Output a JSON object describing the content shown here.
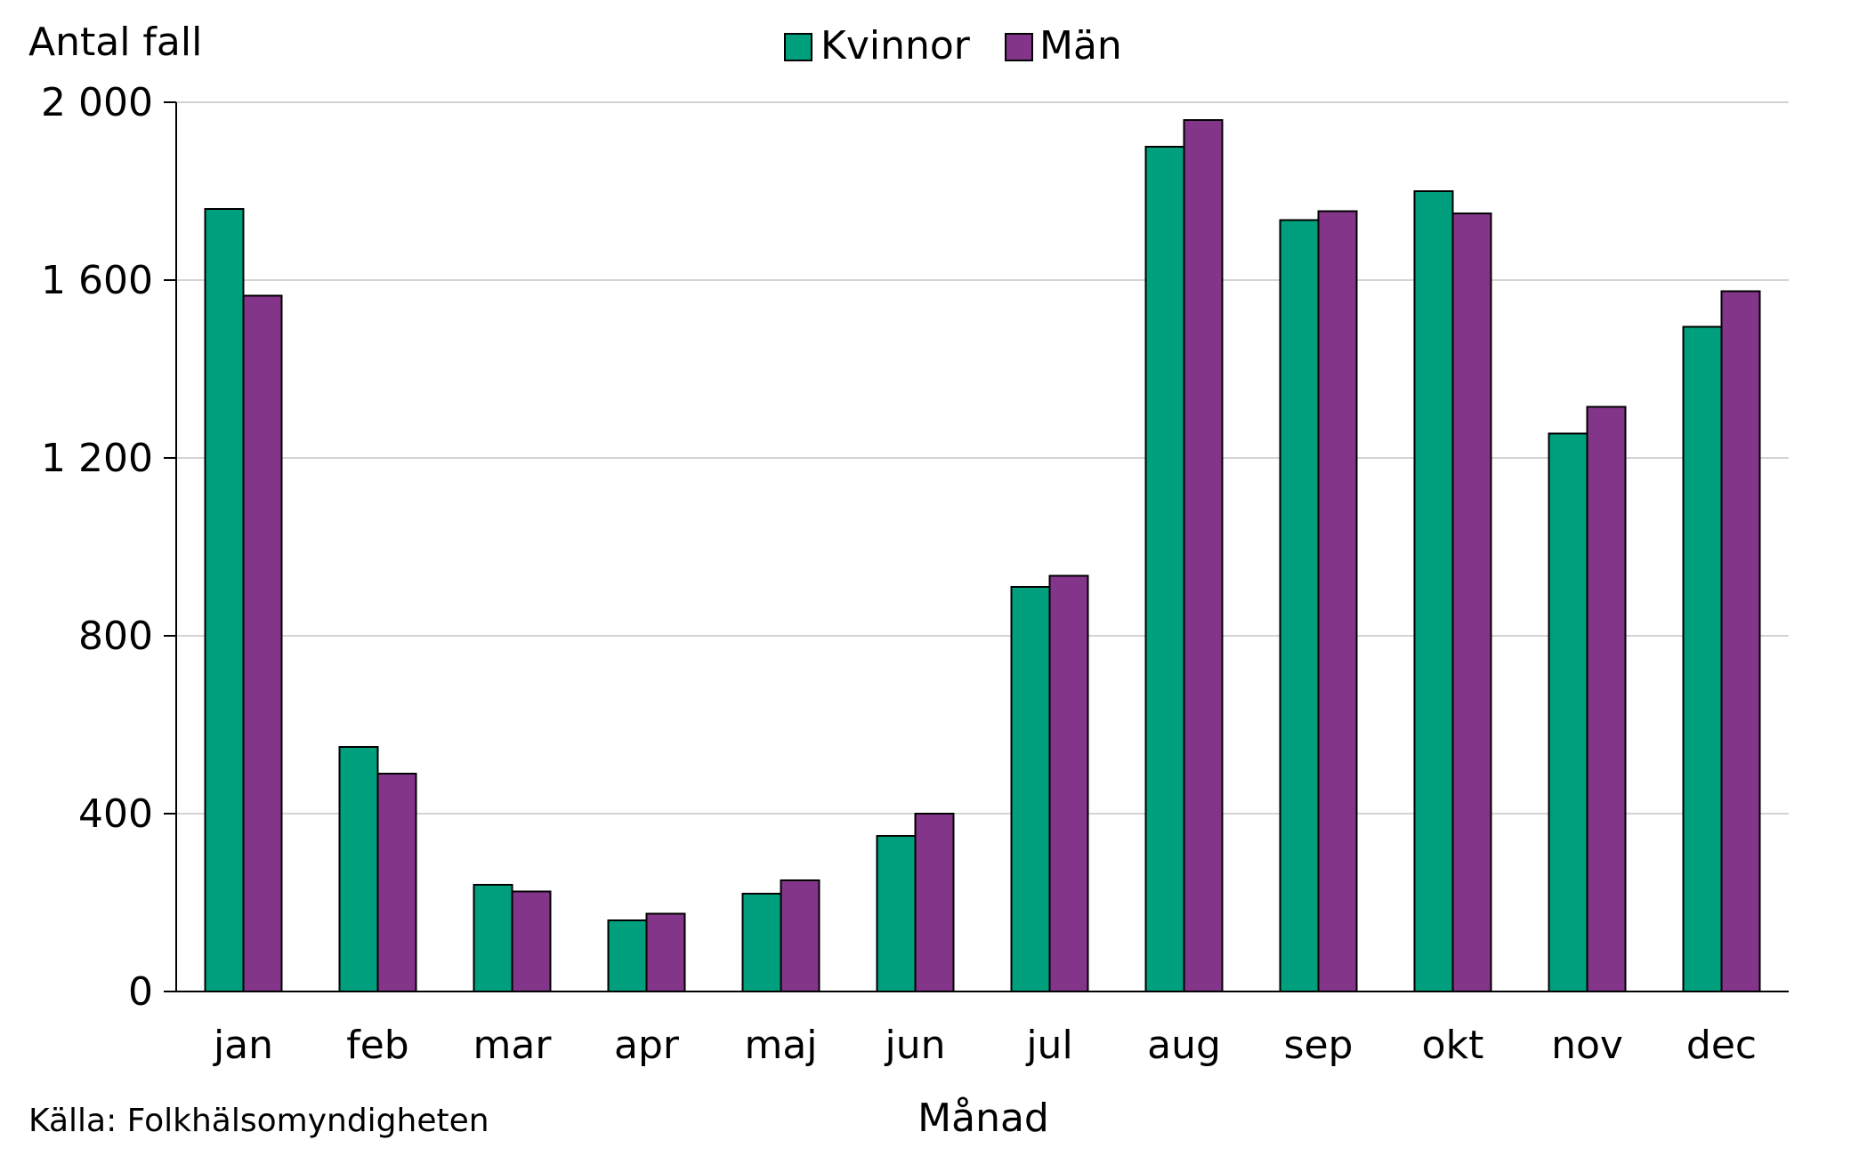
{
  "chart_data": {
    "type": "bar",
    "title": "",
    "ylabel": "Antal fall",
    "xlabel": "Månad",
    "ylim": [
      0,
      2000
    ],
    "yticks": [
      0,
      400,
      800,
      1200,
      1600,
      2000
    ],
    "ytick_labels": [
      "0",
      "400",
      "800",
      "1 200",
      "1 600",
      "2 000"
    ],
    "grid": true,
    "legend_position": "top-center",
    "categories": [
      "jan",
      "feb",
      "mar",
      "apr",
      "maj",
      "jun",
      "jul",
      "aug",
      "sep",
      "okt",
      "nov",
      "dec"
    ],
    "series": [
      {
        "name": "Kvinnor",
        "color": "#00a07e",
        "values": [
          1760,
          550,
          240,
          160,
          220,
          350,
          910,
          1900,
          1735,
          1800,
          1255,
          1495
        ]
      },
      {
        "name": "Män",
        "color": "#83358a",
        "values": [
          1565,
          490,
          225,
          175,
          250,
          400,
          935,
          1960,
          1755,
          1750,
          1315,
          1575
        ]
      }
    ]
  },
  "source": "Källa: Folkhälsomyndigheten"
}
